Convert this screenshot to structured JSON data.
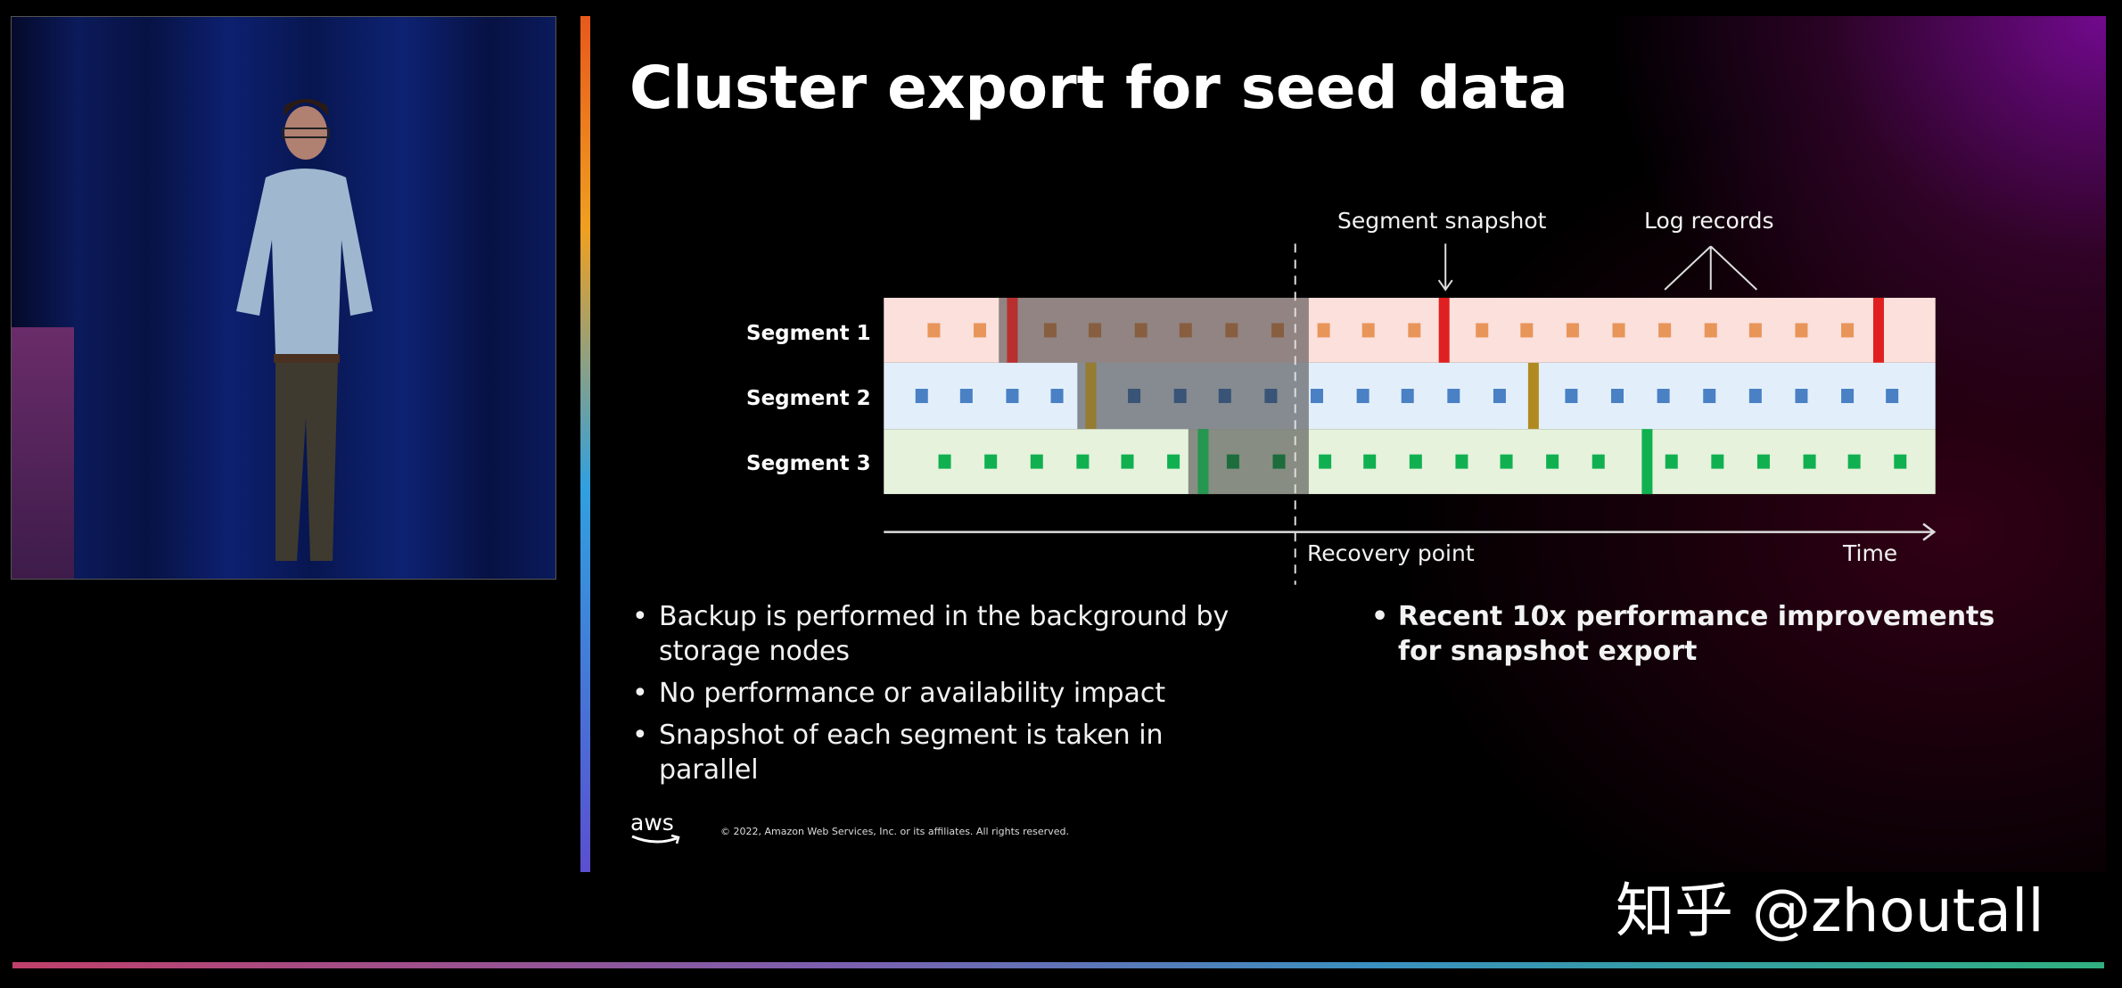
{
  "slide": {
    "title": "Cluster export for seed data",
    "diagram": {
      "segments": [
        "Segment 1",
        "Segment 2",
        "Segment 3"
      ],
      "annotations": {
        "segment_snapshot": "Segment snapshot",
        "log_records": "Log records"
      },
      "axis": {
        "recovery_point": "Recovery point",
        "time": "Time"
      },
      "colors": {
        "segment_1_band": "#fbe0dc",
        "segment_1_record": "#e8955a",
        "segment_1_snapshot": "#e02020",
        "segment_2_band": "#e2effb",
        "segment_2_record": "#4a80c4",
        "segment_2_snapshot": "#b08a20",
        "segment_3_band": "#e6f2dc",
        "segment_3_record": "#10b050",
        "segment_3_snapshot": "#10b050"
      }
    },
    "bullets_left": [
      "Backup is performed in the background by storage nodes",
      "No performance or availability impact",
      "Snapshot of each segment is taken in parallel"
    ],
    "bullets_right": [
      "Recent 10x performance improvements for snapshot export"
    ],
    "footer": {
      "logo": "aws",
      "copyright": "© 2022, Amazon Web Services, Inc. or its affiliates. All rights reserved."
    }
  },
  "watermark": "知乎 @zhoutall"
}
